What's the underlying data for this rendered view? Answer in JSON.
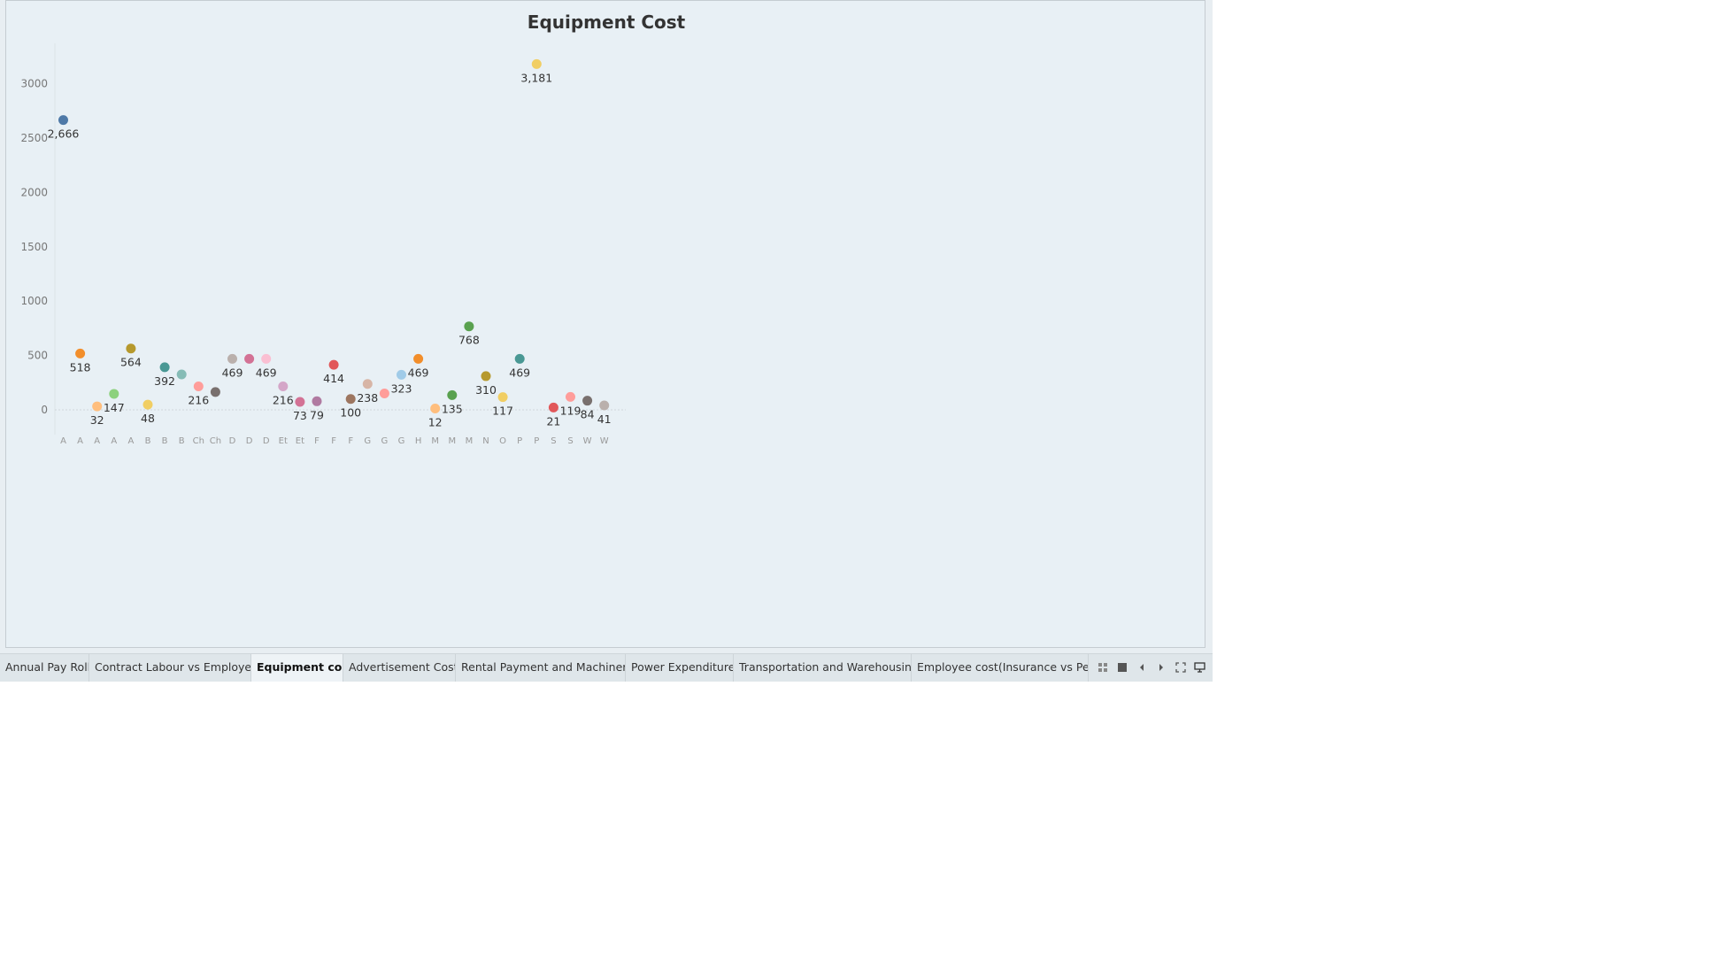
{
  "chart_data": {
    "type": "scatter",
    "title": "Equipment Cost",
    "xlabel": "",
    "ylabel": "",
    "ylim": [
      -200,
      3300
    ],
    "yticks": [
      0,
      500,
      1000,
      1500,
      2000,
      2500,
      3000
    ],
    "grid": false,
    "categories": [
      "A",
      "A",
      "A",
      "A",
      "A",
      "B",
      "B",
      "B",
      "Ch",
      "Ch",
      "D",
      "D",
      "D",
      "Et",
      "Et",
      "F",
      "F",
      "F",
      "G",
      "G",
      "G",
      "H",
      "M",
      "M",
      "M",
      "N",
      "O",
      "P",
      "P",
      "S",
      "S",
      "W",
      "W"
    ],
    "values": [
      2666,
      518,
      32,
      147,
      564,
      48,
      392,
      326,
      216,
      164,
      469,
      469,
      469,
      216,
      73,
      79,
      414,
      100,
      238,
      151,
      323,
      469,
      12,
      135,
      768,
      310,
      117,
      469,
      3181,
      21,
      119,
      84,
      41
    ],
    "labels": [
      "2,666",
      "518",
      "32",
      "147",
      "564",
      "48",
      "392",
      "",
      "216",
      "",
      "469",
      "",
      "469",
      "216",
      "73",
      "79",
      "414",
      "100",
      "238",
      "",
      "323",
      "469",
      "12",
      "135",
      "768",
      "310",
      "117",
      "469",
      "3,181",
      "21",
      "119",
      "84",
      "41"
    ],
    "point_colors": [
      "#4e79a7",
      "#f28e2b",
      "#ffbe7d",
      "#8cd17d",
      "#b6992d",
      "#f1ce63",
      "#499894",
      "#86bcb6",
      "#ff9d9a",
      "#79706e",
      "#bab0ac",
      "#d37295",
      "#fabfd2",
      "#d4a6c8",
      "#d37295",
      "#b07aa1",
      "#e15759",
      "#9d7660",
      "#d7b5a6",
      "#ff9d9a",
      "#a0cbe8",
      "#f28e2b",
      "#ffbe7d",
      "#59a14f",
      "#59a14f",
      "#b6992d",
      "#f1ce63",
      "#499894",
      "#f1ce63",
      "#e15759",
      "#ff9d9a",
      "#79706e",
      "#bab0ac"
    ]
  },
  "tabs": [
    {
      "label": "Annual Pay Roll",
      "active": false
    },
    {
      "label": "Contract Labour vs Employee",
      "active": false
    },
    {
      "label": "Equipment cost",
      "active": true
    },
    {
      "label": "Advertisement Cost",
      "active": false
    },
    {
      "label": "Rental Payment and Machinery",
      "active": false
    },
    {
      "label": "Power Expenditure",
      "active": false
    },
    {
      "label": "Transportation and Warehousing",
      "active": false
    },
    {
      "label": "Employee cost(Insurance vs Pe...",
      "active": false
    }
  ],
  "nav_icons": [
    "grid-view-icon",
    "filmstrip-icon",
    "prev-sheet-icon",
    "next-sheet-icon",
    "fullscreen-icon",
    "present-icon"
  ]
}
